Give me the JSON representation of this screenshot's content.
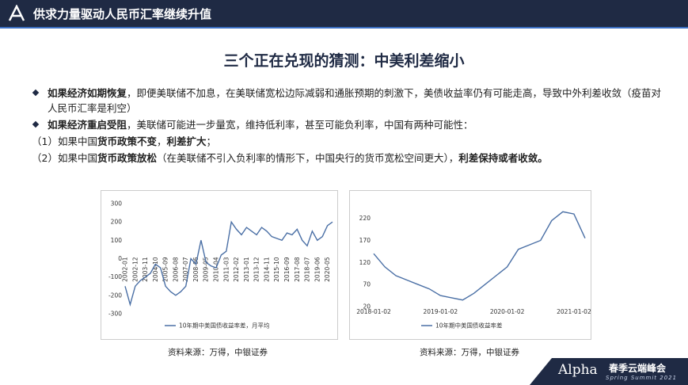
{
  "header": {
    "title": "供求力量驱动人民币汇率继续升值"
  },
  "main_title": "三个正在兑现的猜测：中美利差缩小",
  "points": [
    {
      "bullet": true,
      "segments": [
        {
          "text": "如果经济如期恢复",
          "bold": true
        },
        {
          "text": "，即便美联储不加息，在美联储宽松边际减弱和通胀预期的刺激下，美债收益率仍有可能走高，导致中外利差收敛（疫苗对人民币汇率是利空）",
          "bold": false
        }
      ]
    },
    {
      "bullet": true,
      "segments": [
        {
          "text": "如果经济重启受阻",
          "bold": true
        },
        {
          "text": "，美联储可能进一步量宽，维持低利率，甚至可能负利率，中国有两种可能性：",
          "bold": false
        }
      ]
    },
    {
      "bullet": false,
      "segments": [
        {
          "text": "（1）如果中国",
          "bold": false
        },
        {
          "text": "货币政策不变",
          "bold": true
        },
        {
          "text": "，",
          "bold": false
        },
        {
          "text": "利差扩大",
          "bold": true
        },
        {
          "text": "；",
          "bold": false
        }
      ]
    },
    {
      "bullet": false,
      "segments": [
        {
          "text": "（2）如果中国",
          "bold": false
        },
        {
          "text": "货币政策放松",
          "bold": true
        },
        {
          "text": "（在美联储不引入负利率的情形下，中国央行的货币宽松空间更大），",
          "bold": false
        },
        {
          "text": "利差保持或者收敛。",
          "bold": true
        }
      ]
    }
  ],
  "chart_data": [
    {
      "type": "line",
      "source": "资料来源：万得，中银证券",
      "categories": [
        "2002-01",
        null,
        "2002-12",
        null,
        "2003-11",
        null,
        "2004-10",
        null,
        "2005-09",
        null,
        "2006-08",
        null,
        "2007-07",
        null,
        "2008-06",
        null,
        "2009-05",
        null,
        "2010-04",
        null,
        "2011-03",
        null,
        "2012-02",
        null,
        "2013-01",
        null,
        "2013-12",
        null,
        "2014-11",
        null,
        "2015-10",
        null,
        "2016-09",
        null,
        "2017-08",
        null,
        "2018-07",
        null,
        "2019-06",
        null,
        "2020-05",
        null
      ],
      "series": [
        {
          "name": "10年期中美国债收益率差，月平均",
          "color": "#4a6fa5",
          "values": [
            -150,
            -250,
            -150,
            -120,
            -100,
            -80,
            -30,
            -50,
            -150,
            -180,
            -200,
            -180,
            -150,
            0,
            -30,
            100,
            -20,
            -40,
            -50,
            20,
            40,
            200,
            160,
            130,
            170,
            150,
            130,
            170,
            150,
            120,
            110,
            100,
            140,
            130,
            160,
            100,
            70,
            150,
            100,
            120,
            180,
            200
          ]
        }
      ],
      "ylim": [
        -300,
        300
      ],
      "yticks": [
        -300,
        -200,
        -100,
        0,
        100,
        200,
        300
      ]
    },
    {
      "type": "line",
      "source": "资料来源：万得，中银证券",
      "categories": [
        "2018-01-02",
        null,
        null,
        null,
        null,
        null,
        "2019-01-02",
        null,
        null,
        null,
        null,
        null,
        "2020-01-02",
        null,
        null,
        null,
        null,
        null,
        "2021-01-02",
        null
      ],
      "series": [
        {
          "name": "10年期中美国债收益率差",
          "color": "#4a6fa5",
          "values": [
            140,
            110,
            90,
            80,
            70,
            60,
            45,
            40,
            35,
            50,
            70,
            90,
            110,
            150,
            160,
            170,
            215,
            235,
            230,
            175
          ]
        }
      ],
      "ylim": [
        20,
        250
      ],
      "yticks": [
        20,
        70,
        120,
        170,
        220
      ]
    }
  ],
  "footer": {
    "brand": "Alpha",
    "event": "春季云端峰会",
    "sub": "Spring Summit 2021"
  }
}
